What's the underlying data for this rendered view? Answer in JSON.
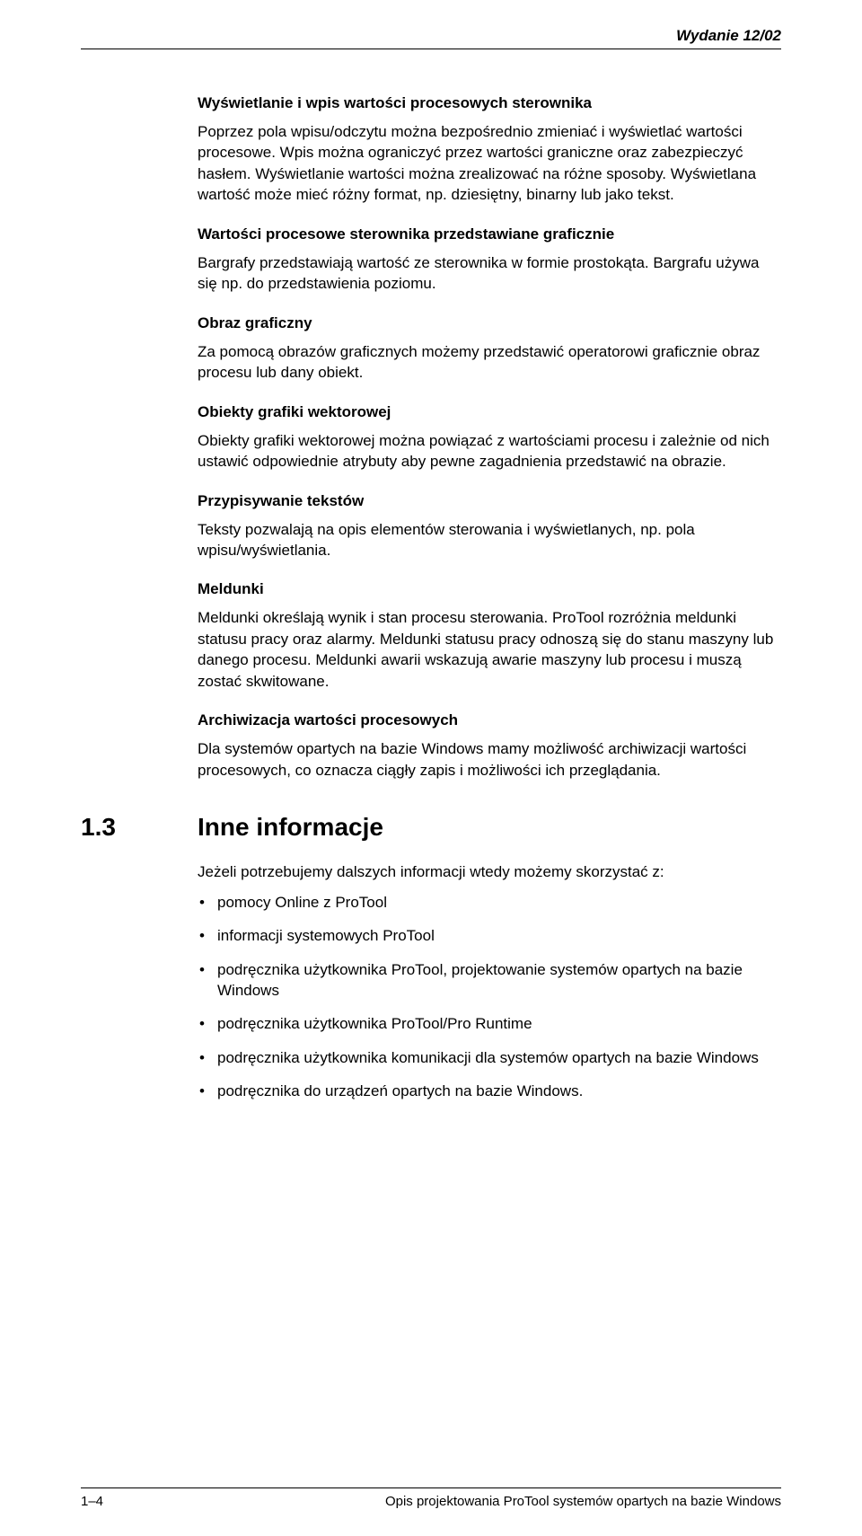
{
  "header": {
    "edition": "Wydanie 12/02"
  },
  "body": {
    "h1": "Wyświetlanie i wpis wartości procesowych sterownika",
    "p1": "Poprzez pola wpisu/odczytu można bezpośrednio zmieniać i wyświetlać wartości procesowe. Wpis można ograniczyć przez wartości graniczne oraz zabezpieczyć hasłem. Wyświetlanie wartości można zrealizować na różne sposoby. Wyświetlana wartość może mieć różny format, np. dziesiętny, binarny lub jako tekst.",
    "h2": "Wartości procesowe sterownika przedstawiane graficznie",
    "p2": "Bargrafy przedstawiają wartość ze sterownika w formie prostokąta. Bargrafu używa się np. do przedstawienia poziomu.",
    "h3": "Obraz graficzny",
    "p3": "Za pomocą obrazów graficznych możemy przedstawić operatorowi graficznie obraz procesu lub dany obiekt.",
    "h4": "Obiekty grafiki wektorowej",
    "p4": "Obiekty grafiki wektorowej można powiązać z wartościami procesu i zależnie od nich ustawić odpowiednie atrybuty aby pewne zagadnienia przedstawić na obrazie.",
    "h5": "Przypisywanie tekstów",
    "p5": "Teksty pozwalają na opis elementów sterowania i wyświetlanych, np. pola wpisu/wyświetlania.",
    "h6": "Meldunki",
    "p6": "Meldunki określają wynik i stan procesu sterowania. ProTool rozróżnia meldunki statusu pracy oraz alarmy. Meldunki statusu pracy odnoszą się do stanu maszyny lub danego procesu. Meldunki awarii wskazują awarie maszyny lub procesu i muszą zostać skwitowane.",
    "h7": "Archiwizacja wartości procesowych",
    "p7": "Dla systemów opartych na bazie Windows mamy możliwość archiwizacji wartości procesowych, co oznacza ciągły zapis i możliwości ich przeglądania."
  },
  "section": {
    "num": "1.3",
    "title": "Inne informacje",
    "intro": "Jeżeli potrzebujemy dalszych informacji wtedy możemy skorzystać z:",
    "items": [
      "pomocy Online z ProTool",
      "informacji systemowych ProTool",
      "podręcznika użytkownika ProTool, projektowanie systemów opartych na bazie Windows",
      "podręcznika użytkownika ProTool/Pro Runtime",
      "podręcznika użytkownika komunikacji dla systemów opartych na bazie Windows",
      "podręcznika do urządzeń opartych na bazie Windows."
    ]
  },
  "footer": {
    "left": "1–4",
    "right": "Opis projektowania ProTool systemów opartych na bazie Windows"
  }
}
